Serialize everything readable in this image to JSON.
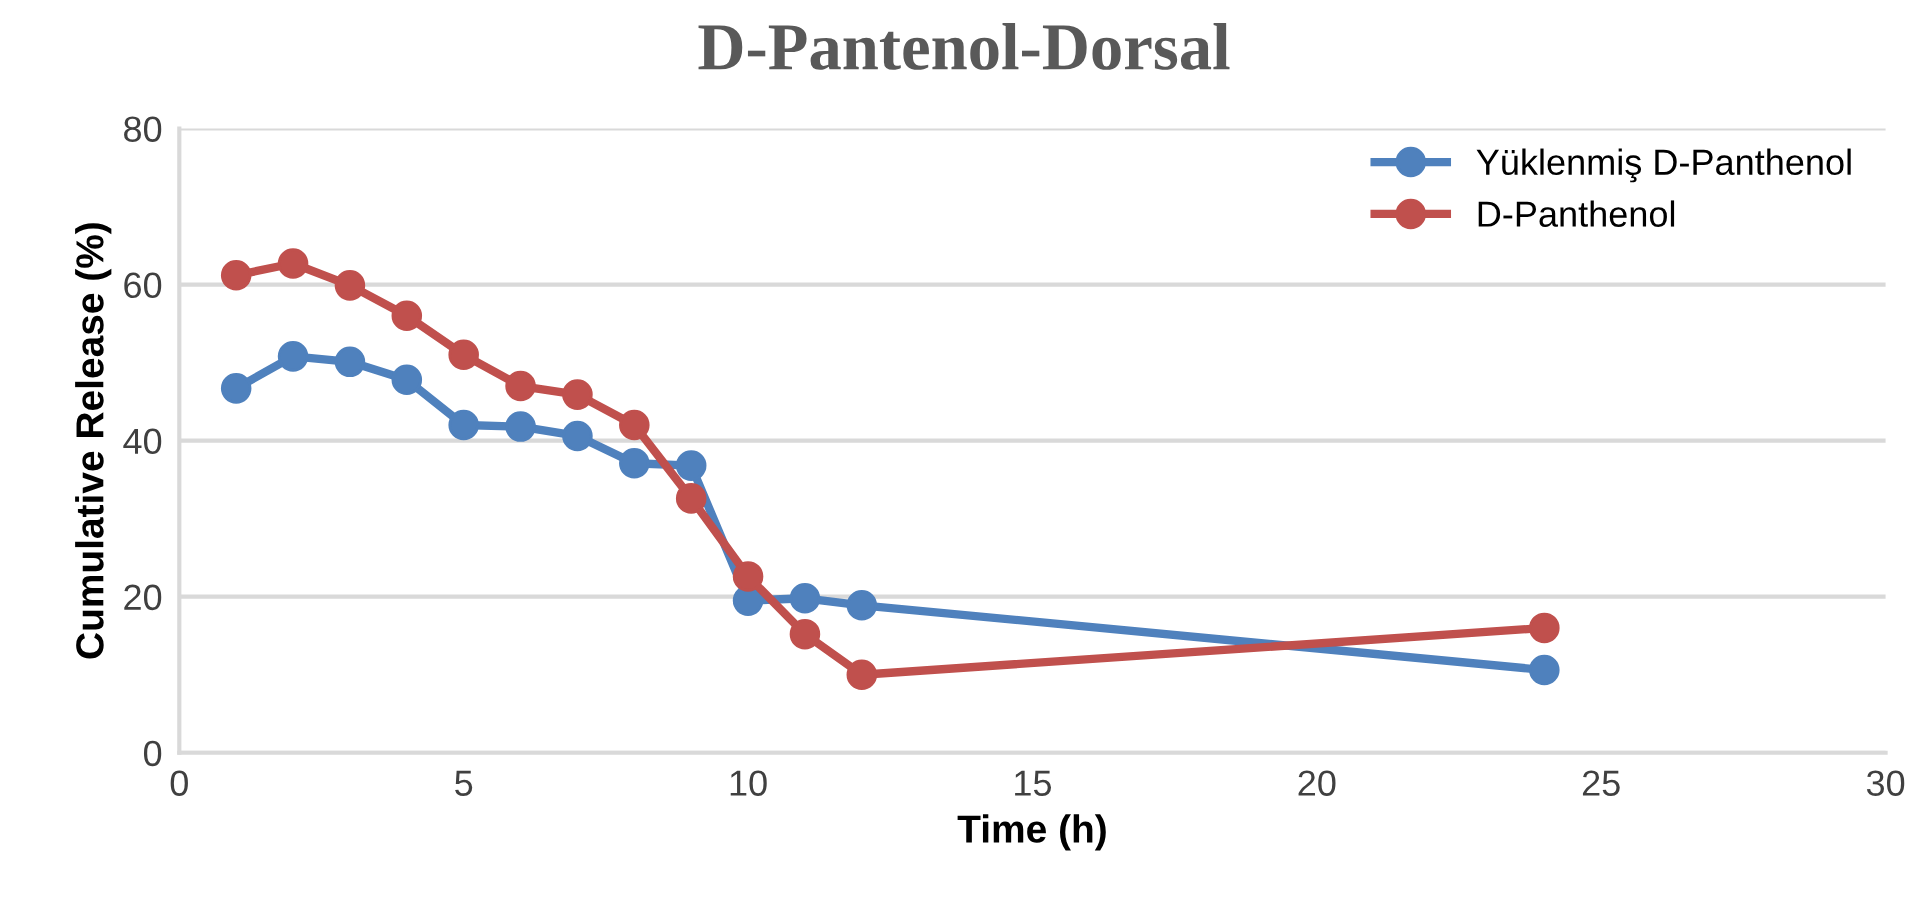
{
  "chart_data": {
    "type": "line",
    "title": "D-Pantenol-Dorsal",
    "xlabel": "Time (h)",
    "ylabel": "Cumulative Release (%)",
    "x": [
      1,
      2,
      3,
      4,
      5,
      6,
      7,
      8,
      9,
      10,
      11,
      12,
      24
    ],
    "series": [
      {
        "name": "Yüklenmiş D-Panthenol",
        "color": "#4f81bd",
        "values": [
          46.7,
          50.8,
          50.1,
          47.8,
          42.0,
          41.8,
          40.6,
          37.1,
          36.8,
          19.5,
          19.8,
          18.9,
          10.6
        ]
      },
      {
        "name": "D-Panthenol",
        "color": "#c0504d",
        "values": [
          61.2,
          62.7,
          59.9,
          56.0,
          51.0,
          47.0,
          45.9,
          42.0,
          32.6,
          22.6,
          15.2,
          10.0,
          16.0
        ]
      }
    ],
    "xlim": [
      0,
      30
    ],
    "xticks": [
      0,
      5,
      10,
      15,
      20,
      25,
      30
    ],
    "ylim": [
      0,
      80
    ],
    "yticks": [
      0,
      20,
      40,
      60,
      80
    ],
    "grid": "y",
    "legend": "top right",
    "marker": "circle",
    "line_style": "solid"
  }
}
